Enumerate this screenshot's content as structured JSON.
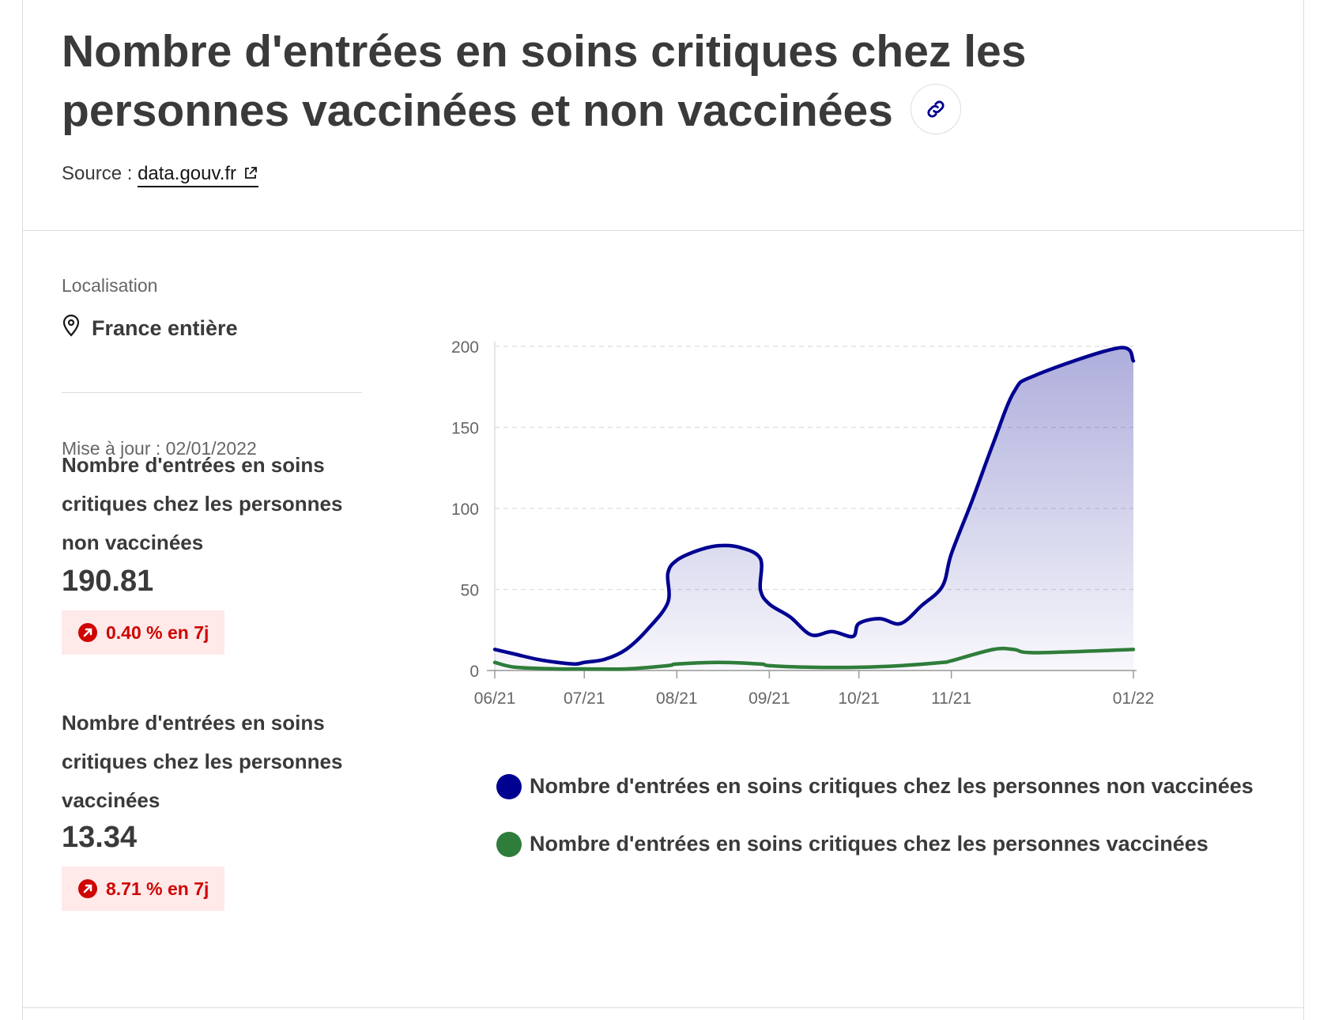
{
  "header": {
    "title": "Nombre d'entrées en soins critiques chez les personnes vaccinées et non vaccinées",
    "source_label": "Source :",
    "source_link": "data.gouv.fr"
  },
  "sidebar": {
    "location_label": "Localisation",
    "location_value": "France entière",
    "updated": "Mise à jour : 02/01/2022",
    "kpis": [
      {
        "title": "Nombre d'entrées en soins critiques chez les personnes non vaccinées",
        "value": "190.81",
        "change": "0.40 % en 7j"
      },
      {
        "title": "Nombre d'entrées en soins critiques chez les personnes vaccinées",
        "value": "13.34",
        "change": "8.71 % en 7j"
      }
    ]
  },
  "colors": {
    "non_vaccinated": "#000091",
    "vaccinated": "#2e7d3a",
    "negative": "#ce0500",
    "badge_bg": "#ffe9e9"
  },
  "chart_data": {
    "type": "area",
    "x_ticks": [
      "06/21",
      "07/21",
      "08/21",
      "09/21",
      "10/21",
      "11/21",
      "01/22"
    ],
    "y_ticks": [
      0,
      50,
      100,
      150,
      200
    ],
    "ylim": [
      0,
      200
    ],
    "grid": true,
    "legend_position": "bottom",
    "series": [
      {
        "name": "Nombre d'entrées en soins critiques chez les personnes non vaccinées",
        "color": "#000091",
        "fill": true,
        "points": [
          [
            "06/21",
            13
          ],
          [
            "06/21 +7j",
            10
          ],
          [
            "06/21 +14j",
            7
          ],
          [
            "06/21 +21j",
            5
          ],
          [
            "07/21 -3j",
            4
          ],
          [
            "07/21",
            5
          ],
          [
            "07/21 +7j",
            7
          ],
          [
            "07/21 +14j",
            13
          ],
          [
            "07/21 +21j",
            25
          ],
          [
            "07/21 +28j",
            42
          ],
          [
            "08/21 -3j",
            60
          ],
          [
            "08/21",
            68
          ],
          [
            "08/21 +7j",
            74
          ],
          [
            "08/21 +14j",
            77
          ],
          [
            "08/21 +21j",
            76
          ],
          [
            "08/21 +28j",
            69
          ],
          [
            "09/21 -3j",
            50
          ],
          [
            "09/21",
            41
          ],
          [
            "09/21 +7j",
            33
          ],
          [
            "09/21 +14j",
            22
          ],
          [
            "09/21 +21j",
            24
          ],
          [
            "09/21 +28j",
            21
          ],
          [
            "10/21",
            29
          ],
          [
            "10/21 +7j",
            32
          ],
          [
            "10/21 +14j",
            29
          ],
          [
            "10/21 +21j",
            40
          ],
          [
            "10/21 +28j",
            52
          ],
          [
            "11/21",
            72
          ],
          [
            "11/21 +7j",
            105
          ],
          [
            "11/21 +14j",
            140
          ],
          [
            "11/21 +21j",
            172
          ],
          [
            "11/21 +28j",
            182
          ],
          [
            "01/22 -5j",
            199
          ],
          [
            "01/22",
            191
          ]
        ]
      },
      {
        "name": "Nombre d'entrées en soins critiques chez les personnes vaccinées",
        "color": "#2e7d3a",
        "fill": false,
        "points": [
          [
            "06/21",
            5
          ],
          [
            "06/21 +7j",
            2
          ],
          [
            "06/21 +21j",
            1
          ],
          [
            "07/21",
            1
          ],
          [
            "07/21 +14j",
            1
          ],
          [
            "07/21 +28j",
            3
          ],
          [
            "08/21",
            4
          ],
          [
            "08/21 +14j",
            5
          ],
          [
            "08/21 +28j",
            4
          ],
          [
            "09/21",
            3
          ],
          [
            "09/21 +14j",
            2
          ],
          [
            "10/21",
            2
          ],
          [
            "10/21 +14j",
            3
          ],
          [
            "10/21 +28j",
            5
          ],
          [
            "11/21",
            6
          ],
          [
            "11/21 +14j",
            13
          ],
          [
            "11/21 +21j",
            13
          ],
          [
            "11/21 +28j",
            11
          ],
          [
            "01/22",
            13
          ]
        ]
      }
    ]
  }
}
